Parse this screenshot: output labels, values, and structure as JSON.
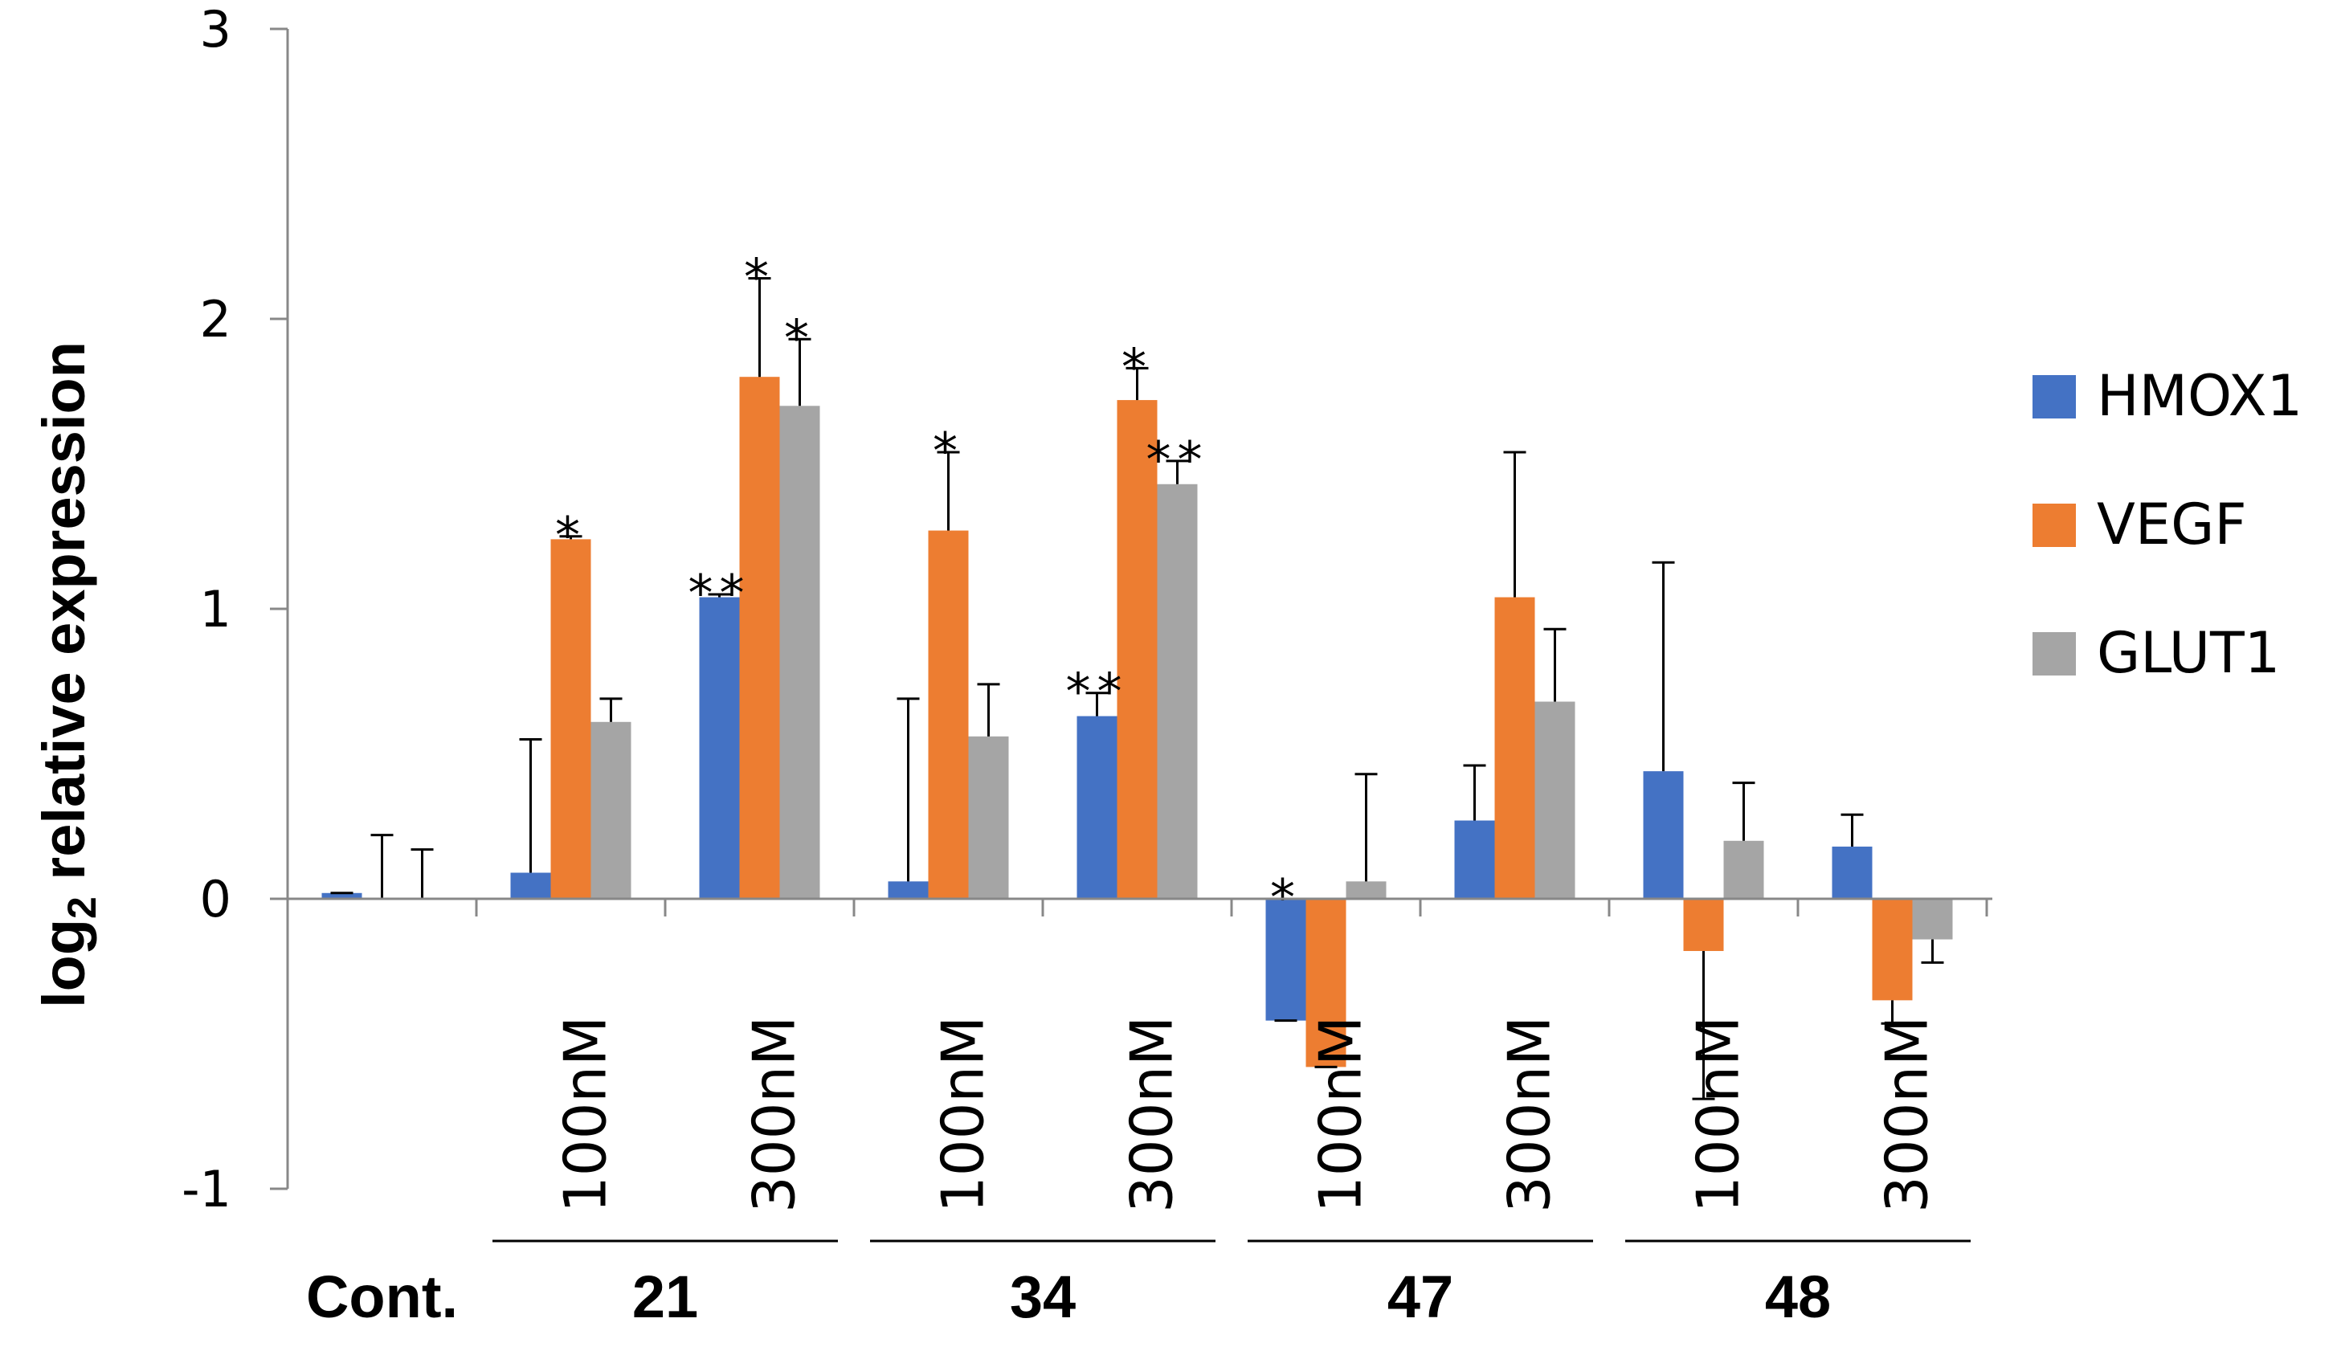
{
  "chart_data": {
    "type": "bar",
    "title": "",
    "xlabel": "",
    "ylabel": "log",
    "ylabel_sub": "2",
    "ylabel_rest": " relative expression",
    "ylim": [
      -1,
      3
    ],
    "yticks": [
      3,
      2,
      1,
      0,
      -1
    ],
    "grid": false,
    "legend_position": "right",
    "categories": [
      "Cont.",
      "21 100nM",
      "21 300nM",
      "34 100nM",
      "34 300nM",
      "47 100nM",
      "47 300nM",
      "48 100nM",
      "48 300nM"
    ],
    "condition_labels": [
      "",
      "100nM",
      "300nM",
      "100nM",
      "300nM",
      "100nM",
      "300nM",
      "100nM",
      "300nM"
    ],
    "group_labels": [
      {
        "label": "Cont.",
        "categories": [
          0
        ]
      },
      {
        "label": "21",
        "categories": [
          1,
          2
        ]
      },
      {
        "label": "34",
        "categories": [
          3,
          4
        ]
      },
      {
        "label": "47",
        "categories": [
          5,
          6
        ]
      },
      {
        "label": "48",
        "categories": [
          7,
          8
        ]
      }
    ],
    "series": [
      {
        "name": "HMOX1",
        "color": "#4472C4",
        "values": [
          0.02,
          0.09,
          1.04,
          0.06,
          0.63,
          -0.42,
          0.27,
          0.44,
          0.18
        ],
        "errors": [
          0.0,
          0.46,
          0.01,
          0.63,
          0.08,
          0.0,
          0.19,
          0.72,
          0.11
        ],
        "significance": [
          "",
          "",
          "**",
          "",
          "**",
          "*",
          "",
          "",
          ""
        ]
      },
      {
        "name": "VEGF",
        "color": "#ED7D31",
        "values": [
          0.0,
          1.24,
          1.8,
          1.27,
          1.72,
          -0.58,
          1.04,
          -0.18,
          -0.35
        ],
        "errors": [
          0.22,
          0.01,
          0.34,
          0.27,
          0.11,
          0.0,
          0.5,
          0.51,
          0.08
        ],
        "significance": [
          "",
          "*",
          "*",
          "*",
          "*",
          "",
          "",
          "",
          ""
        ]
      },
      {
        "name": "GLUT1",
        "color": "#A5A5A5",
        "values": [
          0.0,
          0.61,
          1.7,
          0.56,
          1.43,
          0.06,
          0.68,
          0.2,
          -0.14
        ],
        "errors": [
          0.17,
          0.08,
          0.23,
          0.18,
          0.08,
          0.37,
          0.25,
          0.2,
          0.08
        ],
        "significance": [
          "",
          "",
          "*",
          "",
          "**",
          "",
          "",
          "",
          ""
        ]
      }
    ]
  }
}
